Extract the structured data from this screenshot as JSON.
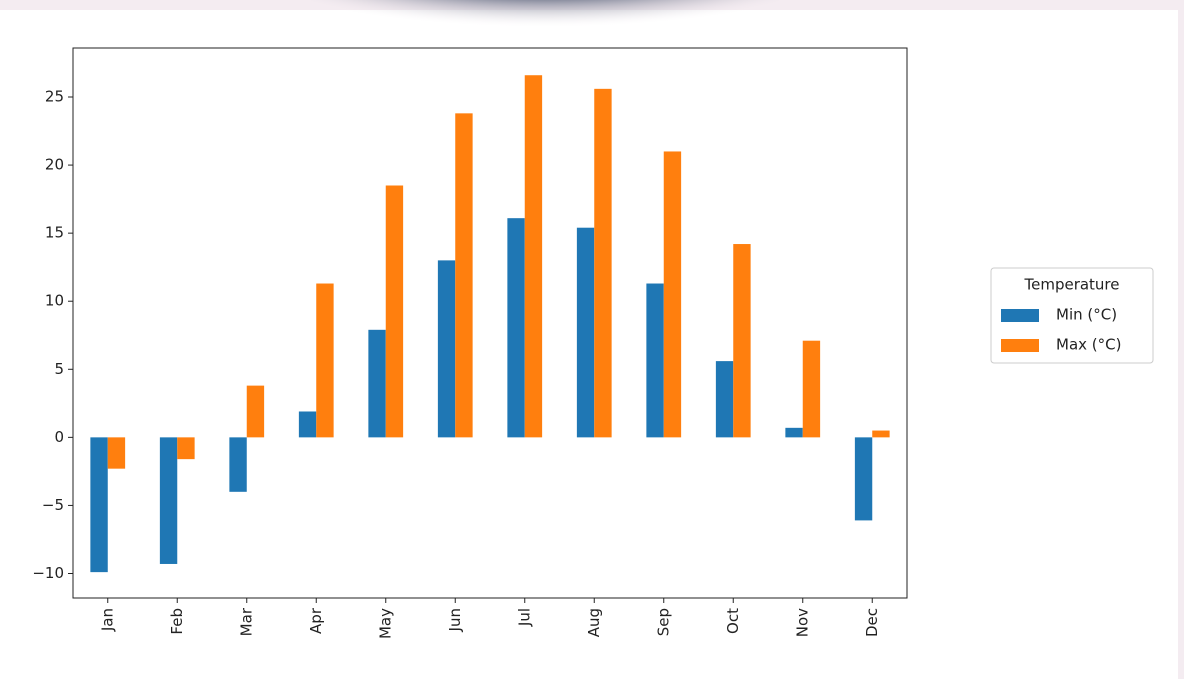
{
  "chart_data": {
    "type": "bar",
    "categories": [
      "Jan",
      "Feb",
      "Mar",
      "Apr",
      "May",
      "Jun",
      "Jul",
      "Aug",
      "Sep",
      "Oct",
      "Nov",
      "Dec"
    ],
    "series": [
      {
        "name": "Min (°C)",
        "color": "#1f77b4",
        "values": [
          -9.9,
          -9.3,
          -4.0,
          1.9,
          7.9,
          13.0,
          16.1,
          15.4,
          11.3,
          5.6,
          0.7,
          -6.1
        ]
      },
      {
        "name": "Max (°C)",
        "color": "#ff7f0e",
        "values": [
          -2.3,
          -1.6,
          3.8,
          11.3,
          18.5,
          23.8,
          26.6,
          25.6,
          21.0,
          14.2,
          7.1,
          0.5
        ]
      }
    ],
    "legend_title": "Temperature",
    "legend": "right",
    "ylim": [
      -11.8,
      28.6
    ],
    "yticks": [
      {
        "value": -10,
        "label": "−10"
      },
      {
        "value": -5,
        "label": "−5"
      },
      0,
      5,
      10,
      15,
      20,
      25
    ],
    "grid": false
  }
}
